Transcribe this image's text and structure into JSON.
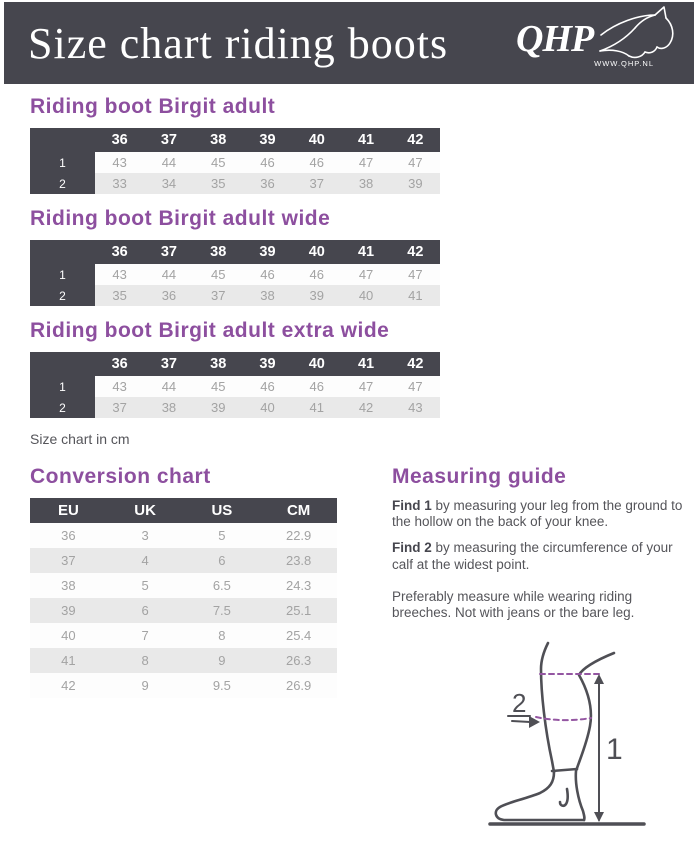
{
  "banner": {
    "title": "Size chart riding boots",
    "logo_text": "QHP",
    "logo_subtext": "WWW.QHP.NL"
  },
  "size_tables": [
    {
      "heading": "Riding boot Birgit adult",
      "columns": [
        "36",
        "37",
        "38",
        "39",
        "40",
        "41",
        "42"
      ],
      "rows": [
        {
          "label": "1",
          "values": [
            "43",
            "44",
            "45",
            "46",
            "46",
            "47",
            "47"
          ]
        },
        {
          "label": "2",
          "values": [
            "33",
            "34",
            "35",
            "36",
            "37",
            "38",
            "39"
          ]
        }
      ]
    },
    {
      "heading": "Riding boot Birgit adult wide",
      "columns": [
        "36",
        "37",
        "38",
        "39",
        "40",
        "41",
        "42"
      ],
      "rows": [
        {
          "label": "1",
          "values": [
            "43",
            "44",
            "45",
            "46",
            "46",
            "47",
            "47"
          ]
        },
        {
          "label": "2",
          "values": [
            "35",
            "36",
            "37",
            "38",
            "39",
            "40",
            "41"
          ]
        }
      ]
    },
    {
      "heading": "Riding boot Birgit adult extra wide",
      "columns": [
        "36",
        "37",
        "38",
        "39",
        "40",
        "41",
        "42"
      ],
      "rows": [
        {
          "label": "1",
          "values": [
            "43",
            "44",
            "45",
            "46",
            "46",
            "47",
            "47"
          ]
        },
        {
          "label": "2",
          "values": [
            "37",
            "38",
            "39",
            "40",
            "41",
            "42",
            "43"
          ]
        }
      ]
    }
  ],
  "size_note": "Size chart in cm",
  "conversion": {
    "heading": "Conversion chart",
    "columns": [
      "EU",
      "UK",
      "US",
      "CM"
    ],
    "rows": [
      [
        "36",
        "3",
        "5",
        "22.9"
      ],
      [
        "37",
        "4",
        "6",
        "23.8"
      ],
      [
        "38",
        "5",
        "6.5",
        "24.3"
      ],
      [
        "39",
        "6",
        "7.5",
        "25.1"
      ],
      [
        "40",
        "7",
        "8",
        "25.4"
      ],
      [
        "41",
        "8",
        "9",
        "26.3"
      ],
      [
        "42",
        "9",
        "9.5",
        "26.9"
      ]
    ]
  },
  "measuring": {
    "heading": "Measuring guide",
    "paragraphs": [
      {
        "bold": "Find 1",
        "text": " by measuring your leg from the ground to the hollow on the back of your knee.",
        "gap": false
      },
      {
        "bold": "Find 2",
        "text": " by measuring the circumference of your calf at the widest point.",
        "gap": false
      },
      {
        "bold": "",
        "text": "Preferably measure while wearing riding breeches. Not with jeans or the bare leg.",
        "gap": true
      }
    ],
    "diagram_labels": {
      "one": "1",
      "two": "2"
    }
  },
  "colors": {
    "banner_bg": "#46464e",
    "accent_purple": "#8d4f9f",
    "row_alt": "#e9e9e9",
    "data_text": "#a3a3a3",
    "diagram_line": "#4f4f55",
    "diagram_dash": "#9456a2"
  }
}
